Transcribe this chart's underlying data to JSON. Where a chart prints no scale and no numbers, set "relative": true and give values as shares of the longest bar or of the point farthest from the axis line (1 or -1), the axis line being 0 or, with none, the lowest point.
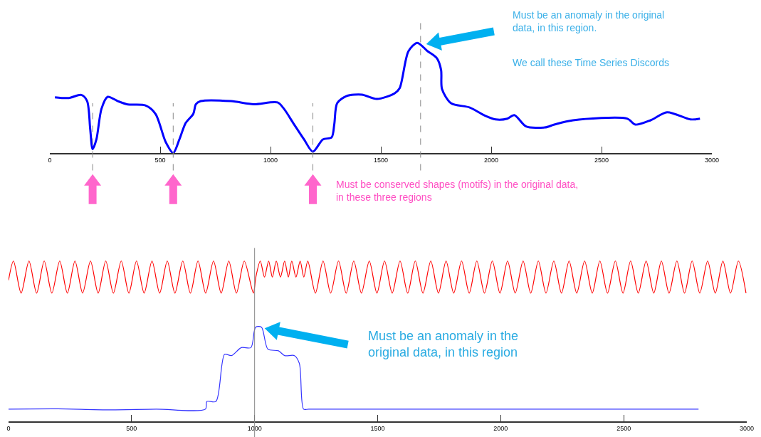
{
  "chart_data": [
    {
      "type": "line",
      "relative": true,
      "xlim": [
        0,
        3000
      ],
      "xticks": [
        0,
        500,
        1000,
        1500,
        2000,
        2500,
        3000
      ],
      "tick_labels": "x",
      "grid": false,
      "line_style": "solid",
      "series": [
        {
          "color": "#0000ff",
          "x": [
            23,
            86,
            143,
            169,
            183,
            194,
            211,
            234,
            262,
            308,
            353,
            433,
            479,
            525,
            559,
            587,
            616,
            650,
            662,
            684,
            821,
            924,
            1032,
            1061,
            1106,
            1152,
            1192,
            1237,
            1277,
            1289,
            1302,
            1345,
            1414,
            1482,
            1562,
            1585,
            1625,
            1665,
            1711,
            1754,
            1773,
            1777,
            1818,
            1903,
            1967,
            2020,
            2073,
            2105,
            2158,
            2243,
            2286,
            2371,
            2616,
            2653,
            2722,
            2797,
            2903,
            2946
          ],
          "values": [
            0.506,
            0.499,
            0.527,
            0.471,
            0.216,
            0.035,
            0.123,
            0.401,
            0.51,
            0.471,
            0.441,
            0.432,
            0.355,
            0.1,
            0,
            0.123,
            0.274,
            0.355,
            0.443,
            0.471,
            0.471,
            0.443,
            0.459,
            0.401,
            0.262,
            0.123,
            0.012,
            0.123,
            0.142,
            0.262,
            0.452,
            0.517,
            0.529,
            0.49,
            0.541,
            0.587,
            0.923,
            1,
            0.925,
            0.86,
            0.753,
            0.581,
            0.452,
            0.413,
            0.344,
            0.305,
            0.312,
            0.344,
            0.241,
            0.232,
            0.258,
            0.297,
            0.312,
            0.258,
            0.297,
            0.37,
            0.305,
            0.312
          ]
        }
      ],
      "ref_lines": [
        {
          "axis": "x",
          "value": 194,
          "color": "#888888",
          "line_style": "dashed"
        },
        {
          "axis": "x",
          "value": 559,
          "color": "#888888",
          "line_style": "dashed"
        },
        {
          "axis": "x",
          "value": 1192,
          "color": "#888888",
          "line_style": "dashed"
        },
        {
          "axis": "x",
          "value": 1680,
          "color": "#888888",
          "line_style": "dashed"
        }
      ],
      "annotations": [
        "Must be an anomaly in the original\ndata, in this region.",
        "We call these Time Series Discords",
        "Must be conserved shapes (motifs) in the original data,\nin these three regions"
      ]
    },
    {
      "type": "line",
      "relative": true,
      "xlim": [
        0,
        3000
      ],
      "xticks": [
        0,
        500,
        1000,
        1500,
        2000,
        2500,
        3000
      ],
      "tick_labels": "x",
      "grid": false,
      "line_style": "solid",
      "series": [
        {
          "color": "#ff0000",
          "x": [
            0,
            20,
            51,
            83,
            114,
            145,
            176,
            208,
            239,
            270,
            301,
            333,
            364,
            395,
            426,
            458,
            489,
            520,
            551,
            583,
            614,
            645,
            676,
            708,
            739,
            770,
            801,
            833,
            864,
            895,
            926,
            958,
            995,
            1005,
            1023,
            1040,
            1057,
            1072,
            1088,
            1105,
            1122,
            1137,
            1151,
            1168,
            1185,
            1200,
            1216,
            1247,
            1278,
            1309,
            1341,
            1372,
            1403,
            1434,
            1466,
            1497,
            1528,
            1559,
            1591,
            1622,
            1653,
            1684,
            1716,
            1747,
            1778,
            1809,
            1841,
            1872,
            1903,
            1934,
            1966,
            1997,
            2028,
            2059,
            2091,
            2122,
            2153,
            2184,
            2216,
            2247,
            2278,
            2309,
            2341,
            2372,
            2403,
            2434,
            2466,
            2497,
            2528,
            2559,
            2591,
            2622,
            2653,
            2684,
            2716,
            2747,
            2778,
            2809,
            2841,
            2872,
            2903,
            2934,
            2966,
            2997
          ],
          "values": [
            0.88,
            1,
            0.8,
            1,
            0.8,
            1,
            0.8,
            1,
            0.8,
            1,
            0.8,
            1,
            0.8,
            1,
            0.8,
            1,
            0.8,
            1,
            0.8,
            1,
            0.8,
            1,
            0.8,
            1,
            0.8,
            1,
            0.8,
            1,
            0.8,
            1,
            0.8,
            1,
            0.8,
            0.9,
            1,
            0.9,
            1,
            0.9,
            1,
            0.9,
            1,
            0.9,
            1,
            0.9,
            1,
            0.9,
            1,
            0.8,
            1,
            0.8,
            1,
            0.8,
            1,
            0.8,
            1,
            0.8,
            1,
            0.8,
            1,
            0.8,
            1,
            0.8,
            1,
            0.8,
            1,
            0.8,
            1,
            0.8,
            1,
            0.8,
            1,
            0.8,
            1,
            0.8,
            1,
            0.8,
            1,
            0.8,
            1,
            0.8,
            1,
            0.8,
            1,
            0.8,
            1,
            0.8,
            1,
            0.8,
            1,
            0.8,
            1,
            0.8,
            1,
            0.8,
            1,
            0.8,
            1,
            0.8,
            1,
            0.8,
            1,
            0.8,
            1,
            0.8
          ]
        },
        {
          "color": "#3333ff",
          "x": [
            0,
            200,
            400,
            600,
            800,
            806,
            843,
            878,
            906,
            946,
            985,
            1004,
            1028,
            1054,
            1097,
            1122,
            1162,
            1182,
            1199,
            1220,
            1600,
            2000,
            2400,
            2804
          ],
          "values": [
            0.076,
            0.078,
            0.072,
            0.076,
            0.076,
            0.124,
            0.124,
            0.418,
            0.41,
            0.46,
            0.46,
            0.587,
            0.587,
            0.45,
            0.44,
            0.41,
            0.41,
            0.36,
            0.076,
            0.076,
            0.076,
            0.076,
            0.076,
            0.076
          ]
        }
      ],
      "ref_lines": [
        {
          "axis": "x",
          "value": 1000,
          "color": "#888888",
          "line_style": "solid"
        }
      ],
      "annotations": [
        "Must be an anomaly in the\noriginal data, in this region"
      ]
    }
  ]
}
